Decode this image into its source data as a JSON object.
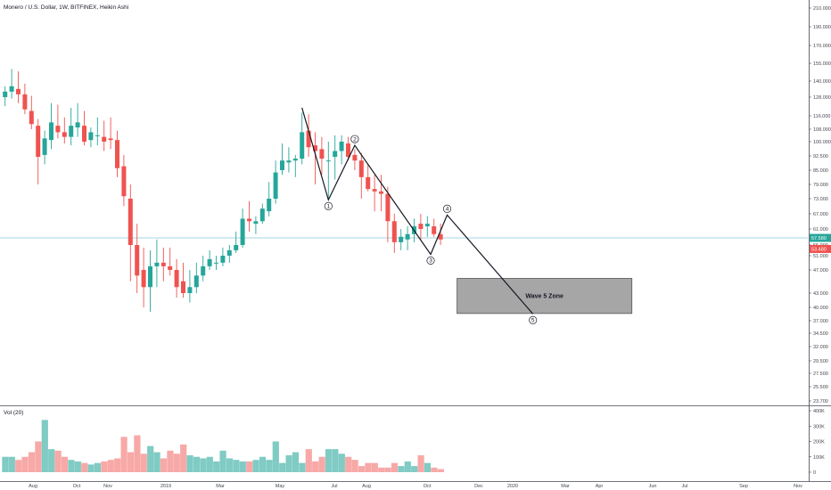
{
  "chart_data": {
    "type": "candlestick",
    "title": "Monero / U.S. Dollar, 1W, BITFINEX, Heikin Ashi",
    "colors": {
      "up": "#26a69a",
      "down": "#ef5350",
      "up_vol": "#80cbc4",
      "down_vol": "#f7a9a7",
      "price_line": "#88c8d6",
      "box_fill": "#a6a6a6"
    },
    "price_axis": {
      "scale": "log",
      "ticks": [
        "210.000",
        "190.000",
        "170.000",
        "155.000",
        "140.000",
        "128.000",
        "116.000",
        "108.000",
        "100.000",
        "92.500",
        "85.000",
        "79.000",
        "73.000",
        "67.000",
        "61.000",
        "55.000",
        "51.000",
        "47.000",
        "43.000",
        "40.000",
        "37.000",
        "34.500",
        "32.000",
        "29.500",
        "27.500",
        "25.500",
        "23.700"
      ],
      "tick_values": [
        210,
        190,
        170,
        155,
        140,
        128,
        116,
        108,
        100,
        92.5,
        85,
        79,
        73,
        67,
        61,
        55,
        51,
        47,
        43,
        40,
        37,
        34.5,
        32,
        29.5,
        27.5,
        25.5,
        23.7
      ]
    },
    "current_price": {
      "label": "57.580",
      "value": 57.58
    },
    "low_marker": {
      "label": "53.480",
      "value": 53.48
    },
    "volume": {
      "label": "Vol (20)",
      "ticks": [
        "400K",
        "300K",
        "200K",
        "100K",
        "0"
      ],
      "tick_values": [
        400000,
        300000,
        200000,
        100000,
        0
      ]
    },
    "x_labels": [
      "Aug",
      "Oct",
      "Nov",
      "2019",
      "Mar",
      "May",
      "Jul",
      "Aug",
      "Oct",
      "Dec",
      "2020",
      "Mar",
      "Apr",
      "Jun",
      "Jul",
      "Sep",
      "Nov"
    ],
    "candles": [
      [
        128,
        136,
        122,
        132
      ],
      [
        132,
        150,
        127,
        136
      ],
      [
        134,
        148,
        124,
        130
      ],
      [
        130,
        138,
        117,
        120
      ],
      [
        119,
        129,
        108,
        111
      ],
      [
        110,
        114,
        79,
        92
      ],
      [
        93,
        107,
        88,
        102
      ],
      [
        101,
        124,
        96,
        112
      ],
      [
        110,
        123,
        102,
        106
      ],
      [
        106,
        115,
        99,
        103
      ],
      [
        103,
        121,
        98,
        110
      ],
      [
        109,
        124,
        103,
        112
      ],
      [
        110,
        119,
        98,
        100
      ],
      [
        101,
        109,
        97,
        106
      ],
      [
        104,
        115,
        98,
        104
      ],
      [
        103,
        113,
        95,
        100
      ],
      [
        102,
        115,
        96,
        101
      ],
      [
        101,
        107,
        82,
        86
      ],
      [
        87,
        93,
        70,
        74
      ],
      [
        73,
        79,
        45,
        55
      ],
      [
        55,
        63,
        43,
        46
      ],
      [
        47,
        54,
        40,
        44
      ],
      [
        44,
        53,
        39,
        48
      ],
      [
        48,
        57,
        44,
        49
      ],
      [
        49,
        54,
        45,
        48
      ],
      [
        48,
        54,
        46,
        47
      ],
      [
        47,
        50,
        42,
        44
      ],
      [
        45,
        49,
        42,
        43
      ],
      [
        43,
        47,
        41,
        44
      ],
      [
        44,
        49,
        43,
        46
      ],
      [
        46,
        51,
        45,
        48
      ],
      [
        48,
        53,
        47,
        50
      ],
      [
        49,
        51,
        47,
        49
      ],
      [
        49,
        54,
        48,
        51
      ],
      [
        51,
        55,
        49,
        53
      ],
      [
        53,
        60,
        52,
        55
      ],
      [
        55,
        69,
        54,
        65
      ],
      [
        65,
        72,
        60,
        64
      ],
      [
        63,
        66,
        59,
        64
      ],
      [
        64,
        71,
        63,
        69
      ],
      [
        68,
        80,
        66,
        73
      ],
      [
        73,
        90,
        71,
        84
      ],
      [
        85,
        99,
        83,
        90
      ],
      [
        89,
        97,
        84,
        90
      ],
      [
        90,
        93,
        82,
        91
      ],
      [
        91,
        118,
        88,
        106
      ],
      [
        107,
        117,
        92,
        97
      ],
      [
        98,
        106,
        79,
        95
      ],
      [
        96,
        103,
        83,
        91
      ],
      [
        90,
        100,
        73,
        90
      ],
      [
        92,
        104,
        81,
        95
      ],
      [
        95,
        104,
        88,
        100
      ],
      [
        99,
        103,
        90,
        92
      ],
      [
        93,
        96,
        85,
        90
      ],
      [
        90,
        94,
        73,
        82
      ],
      [
        82,
        88,
        76,
        77
      ],
      [
        77,
        83,
        68,
        76
      ],
      [
        76,
        83,
        68,
        75
      ],
      [
        75,
        78,
        56,
        64
      ],
      [
        64,
        67,
        52,
        56
      ],
      [
        56,
        61,
        53,
        58
      ],
      [
        57,
        62,
        53,
        59
      ],
      [
        59,
        65,
        56,
        62
      ],
      [
        63,
        67,
        57,
        61
      ],
      [
        62,
        66,
        58,
        63
      ],
      [
        62,
        65,
        58,
        59
      ],
      [
        59,
        63,
        55,
        57
      ]
    ],
    "volumes": [
      100000,
      100000,
      80000,
      100000,
      130000,
      200000,
      340000,
      150000,
      140000,
      100000,
      80000,
      70000,
      60000,
      50000,
      60000,
      70000,
      80000,
      90000,
      230000,
      130000,
      240000,
      120000,
      170000,
      130000,
      90000,
      140000,
      120000,
      180000,
      110000,
      100000,
      90000,
      100000,
      70000,
      140000,
      90000,
      80000,
      70000,
      70000,
      80000,
      100000,
      80000,
      200000,
      60000,
      110000,
      130000,
      60000,
      150000,
      70000,
      100000,
      150000,
      150000,
      120000,
      100000,
      80000,
      40000,
      60000,
      60000,
      30000,
      30000,
      60000,
      40000,
      70000,
      40000,
      110000,
      60000,
      30000,
      20000
    ],
    "elliott_wave": [
      {
        "label": "",
        "date_index": 45,
        "price": 121
      },
      {
        "label": "1",
        "date_index": 49,
        "price": 72.5
      },
      {
        "label": "2",
        "date_index": 53,
        "price": 98
      },
      {
        "label": "3",
        "date_index": 64.5,
        "price": 51.5
      },
      {
        "label": "4",
        "date_index": 67,
        "price": 66.5
      },
      {
        "label": "5",
        "date_index": 80,
        "price": 38.5
      }
    ],
    "wave_5_zone": {
      "label": "Wave 5 Zone",
      "price_low": 38.6,
      "price_high": 45.5,
      "date_start": 68.5,
      "date_end": 95
    }
  }
}
